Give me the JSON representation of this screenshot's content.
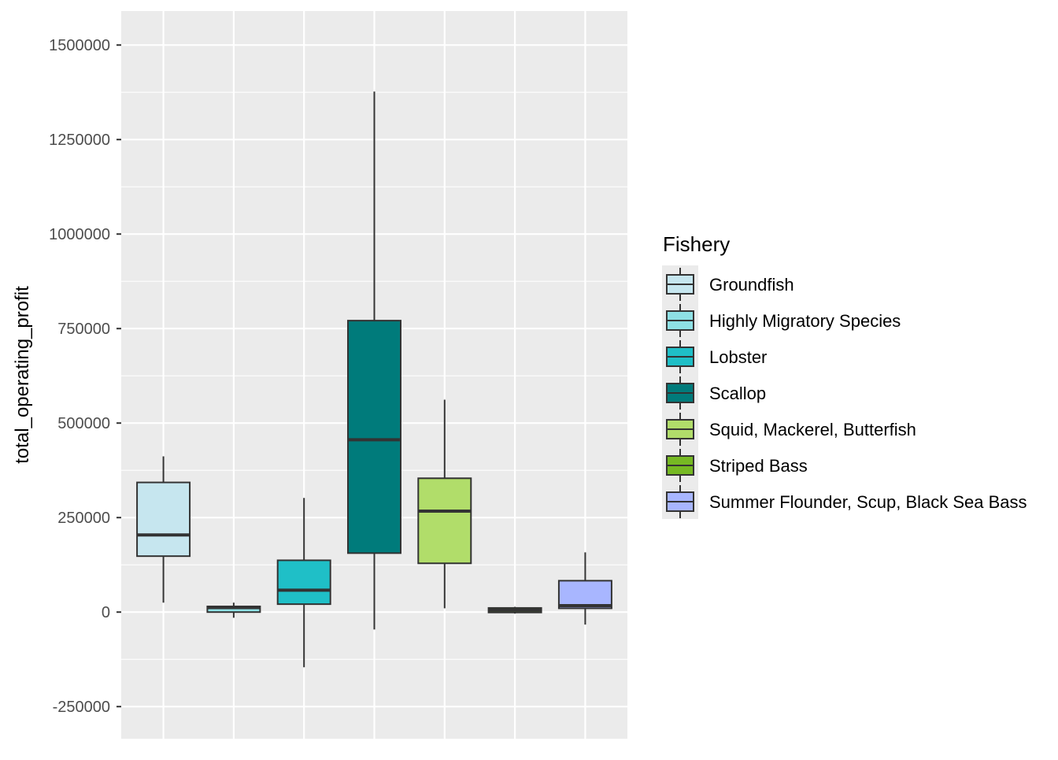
{
  "chart_data": {
    "type": "boxplot",
    "title": "",
    "xlabel": "",
    "ylabel": "total_operating_profit",
    "ylim": [
      -335000,
      1590000
    ],
    "yticks": [
      -250000,
      0,
      250000,
      500000,
      750000,
      1000000,
      1250000,
      1500000
    ],
    "ytick_labels": [
      "-250000",
      "0",
      "250000",
      "500000",
      "750000",
      "1000000",
      "1250000",
      "1500000"
    ],
    "grid": true,
    "legend": {
      "title": "Fishery",
      "placement": "right"
    },
    "series": [
      {
        "name": "Groundfish",
        "color": "#C6E6EF",
        "whisker_low": 25000,
        "q1": 148000,
        "median": 204000,
        "q3": 343000,
        "whisker_high": 412000
      },
      {
        "name": "Highly Migratory Species",
        "color": "#8EE0E4",
        "whisker_low": -15000,
        "q1": 0,
        "median": 12000,
        "q3": 15000,
        "whisker_high": 25000
      },
      {
        "name": "Lobster",
        "color": "#1FBFC7",
        "whisker_low": -146000,
        "q1": 21000,
        "median": 58000,
        "q3": 137000,
        "whisker_high": 302000
      },
      {
        "name": "Scallop",
        "color": "#007B7B",
        "whisker_low": -46000,
        "q1": 156000,
        "median": 456000,
        "q3": 771000,
        "whisker_high": 1377000
      },
      {
        "name": "Squid, Mackerel, Butterfish",
        "color": "#B1DD6A",
        "whisker_low": 10000,
        "q1": 129000,
        "median": 267000,
        "q3": 354000,
        "whisker_high": 562000
      },
      {
        "name": "Striped Bass",
        "color": "#76B923",
        "whisker_low": -4000,
        "q1": -1000,
        "median": 5000,
        "q3": 11000,
        "whisker_high": 14000
      },
      {
        "name": "Summer Flounder, Scup, Black Sea Bass",
        "color": "#A8B6FF",
        "whisker_low": -33000,
        "q1": 10000,
        "median": 17000,
        "q3": 83000,
        "whisker_high": 158000
      }
    ]
  }
}
